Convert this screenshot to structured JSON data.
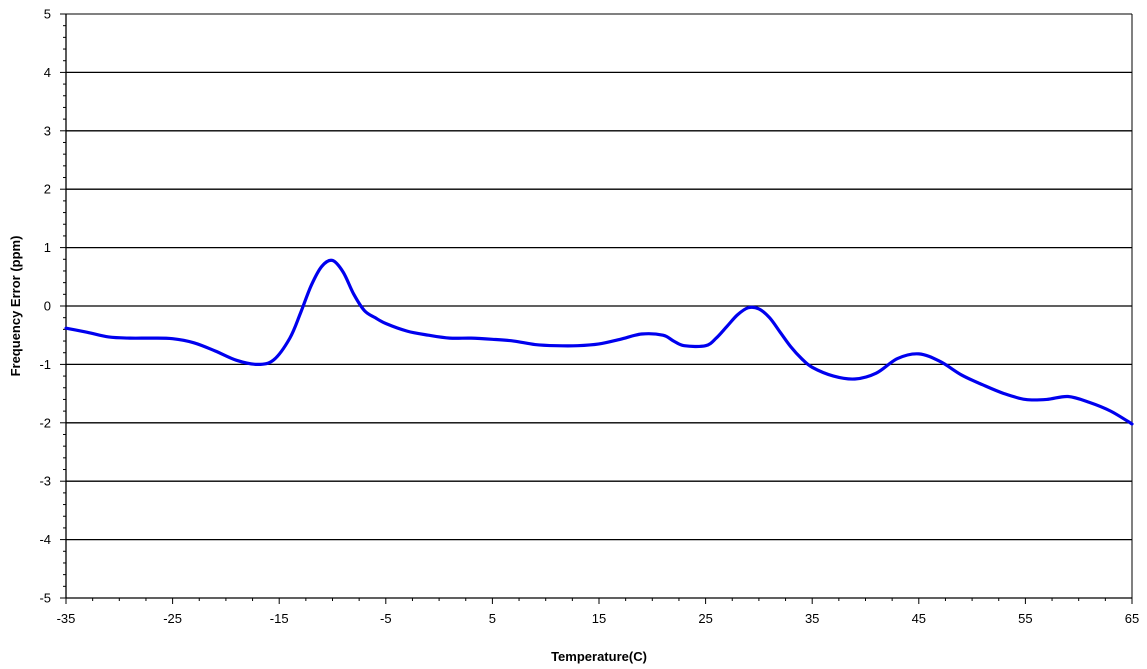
{
  "colors": {
    "line": "#0000EE",
    "grid": "#000000",
    "axis": "#000000",
    "background": "#FFFFFF"
  },
  "chart_data": {
    "type": "line",
    "title": "",
    "xlabel": "Temperature(C)",
    "ylabel": "Frequency Error (ppm)",
    "xlim": [
      -35,
      65
    ],
    "ylim": [
      -5,
      5
    ],
    "x_ticks": [
      -35,
      -25,
      -15,
      -5,
      5,
      15,
      25,
      35,
      45,
      55,
      65
    ],
    "x_tick_labels": [
      "-35",
      "-25",
      "-15",
      "-5",
      "5",
      "15",
      "25",
      "35",
      "45",
      "55",
      "65"
    ],
    "y_ticks": [
      5,
      4,
      3,
      2,
      1,
      0,
      -1,
      -2,
      -3,
      -4,
      -5
    ],
    "y_tick_labels": [
      "5",
      "4",
      "3",
      "2",
      "1",
      "0",
      "-1",
      "-2",
      "-3",
      "-4",
      "-5"
    ],
    "grid": "horizontal major gridlines",
    "legend": "none",
    "series": [
      {
        "x": [
          -35,
          -33,
          -31,
          -29,
          -27,
          -25,
          -23,
          -21,
          -19,
          -17,
          -15.5,
          -14,
          -13,
          -12,
          -11,
          -10,
          -9,
          -8,
          -7,
          -6,
          -5,
          -3,
          -1,
          1,
          3,
          5,
          7,
          9,
          11,
          13,
          15,
          17,
          19,
          21,
          22,
          23,
          25,
          26,
          27,
          28,
          29,
          30,
          31,
          32,
          33,
          34,
          35,
          37,
          39,
          41,
          43,
          45,
          47,
          49,
          51,
          53,
          55,
          57,
          59,
          61,
          63,
          65
        ],
        "y": [
          -0.38,
          -0.45,
          -0.53,
          -0.55,
          -0.55,
          -0.56,
          -0.63,
          -0.77,
          -0.93,
          -1.0,
          -0.92,
          -0.55,
          -0.12,
          0.35,
          0.68,
          0.78,
          0.58,
          0.2,
          -0.08,
          -0.2,
          -0.3,
          -0.43,
          -0.5,
          -0.55,
          -0.55,
          -0.57,
          -0.6,
          -0.66,
          -0.68,
          -0.68,
          -0.65,
          -0.57,
          -0.48,
          -0.5,
          -0.6,
          -0.68,
          -0.68,
          -0.55,
          -0.35,
          -0.15,
          -0.03,
          -0.05,
          -0.2,
          -0.45,
          -0.7,
          -0.9,
          -1.05,
          -1.2,
          -1.25,
          -1.15,
          -0.9,
          -0.82,
          -0.95,
          -1.18,
          -1.35,
          -1.5,
          -1.6,
          -1.6,
          -1.55,
          -1.65,
          -1.8,
          -2.02
        ]
      }
    ]
  }
}
